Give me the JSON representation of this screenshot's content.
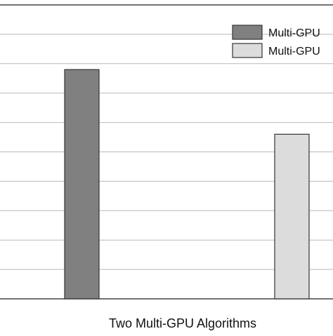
{
  "chart_data": {
    "type": "bar",
    "xlabel": "Two Multi-GPU Algorithms",
    "ylabel": "",
    "title": "",
    "ylim": [
      0,
      10
    ],
    "grid": true,
    "legend_position": "top-right",
    "series": [
      {
        "name": "Multi-GPU",
        "value": 7.8,
        "color": "#808080"
      },
      {
        "name": "Multi-GPU",
        "value": 5.6,
        "color": "#dcdcdc"
      }
    ]
  }
}
